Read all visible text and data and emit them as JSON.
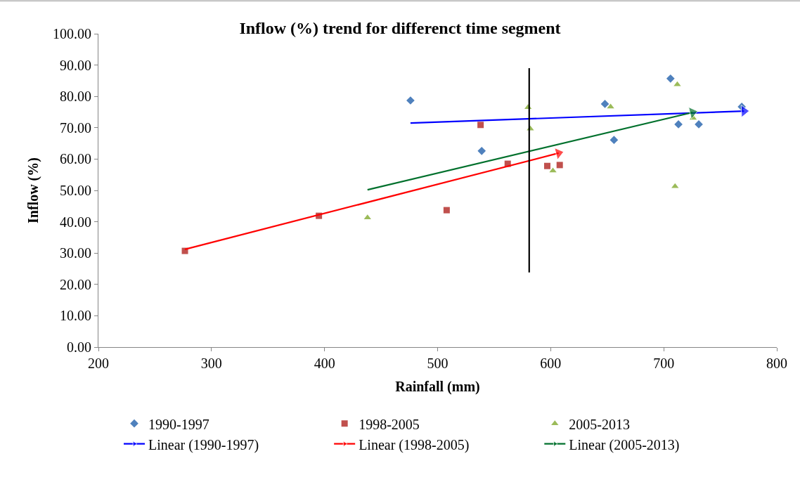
{
  "chart_data": {
    "type": "scatter",
    "title": "Inflow (%) trend for differenct time segment",
    "xlabel": "Rainfall (mm)",
    "ylabel": "Inflow (%)",
    "xlim": [
      200,
      800
    ],
    "xticks": [
      200,
      300,
      400,
      500,
      600,
      700,
      800
    ],
    "ylim": [
      0,
      100
    ],
    "yticks": [
      {
        "value": 0,
        "label": "0.00"
      },
      {
        "value": 10,
        "label": "10.00"
      },
      {
        "value": 20,
        "label": "20.00"
      },
      {
        "value": 30,
        "label": "30.00"
      },
      {
        "value": 40,
        "label": "40.00"
      },
      {
        "value": 50,
        "label": "50.00"
      },
      {
        "value": 60,
        "label": "60.00"
      },
      {
        "value": 70,
        "label": "70.00"
      },
      {
        "value": 80,
        "label": "80.00"
      },
      {
        "value": 90,
        "label": "90.00"
      },
      {
        "value": 100,
        "label": "100.00"
      }
    ],
    "legend": "bottom",
    "series": [
      {
        "name": "1990-1997",
        "marker": "diamond",
        "color": "#4f81bd",
        "x": [
          476,
          539,
          648,
          656,
          706,
          713,
          731,
          769
        ],
        "values": [
          78.7,
          62.6,
          77.6,
          66.1,
          85.7,
          71.1,
          71.1,
          76.7
        ]
      },
      {
        "name": "1998-2005",
        "marker": "square",
        "color": "#c0504d",
        "x": [
          276.5,
          395,
          508,
          538,
          562,
          597,
          608
        ],
        "values": [
          30.7,
          41.9,
          43.7,
          70.9,
          58.5,
          57.8,
          58.1
        ]
      },
      {
        "name": "2005-2013",
        "marker": "triangle",
        "color": "#9bbb59",
        "x": [
          438,
          580,
          582,
          602,
          653,
          710,
          712,
          726
        ],
        "values": [
          41.3,
          76.5,
          69.7,
          56.3,
          76.7,
          51.3,
          83.8,
          73.1
        ]
      },
      {
        "name": "Linear (1990-1997)",
        "type": "line",
        "color": "#0000ff",
        "x": [
          476,
          771
        ],
        "values": [
          71.5,
          75.3
        ]
      },
      {
        "name": "Linear (1998-2005)",
        "type": "line",
        "color": "#ff0000",
        "x": [
          276.5,
          607
        ],
        "values": [
          31.2,
          61.9
        ]
      },
      {
        "name": "Linear (2005-2013)",
        "type": "line",
        "color": "#00702c",
        "x": [
          438,
          725.5
        ],
        "values": [
          50.2,
          74.9
        ]
      },
      {
        "type": "line",
        "marker": "none",
        "color": "#000000",
        "x": [
          581,
          581
        ],
        "values": [
          23.8,
          89.0
        ]
      }
    ]
  }
}
